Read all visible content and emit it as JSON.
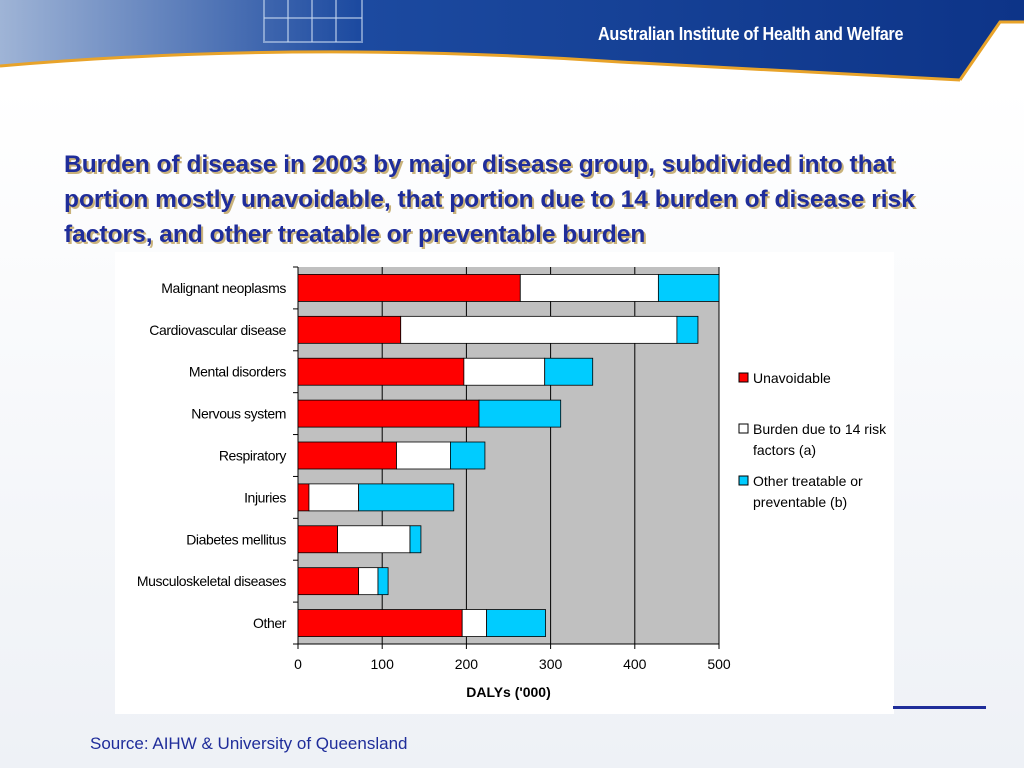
{
  "header": {
    "organization": "Australian Institute of Health and Welfare"
  },
  "slide": {
    "title": "Burden of disease in 2003 by major disease group, subdivided into that portion mostly unavoidable, that portion due to 14 burden of disease risk factors, and other treatable or preventable burden",
    "source": "Source: AIHW & University of Queensland"
  },
  "colors": {
    "unavoidable": "#ff0000",
    "risk_factors": "#ffffff",
    "other": "#00ccff",
    "plot_bg": "#c0c0c0",
    "title": "#1f2d9a"
  },
  "chart_data": {
    "type": "bar",
    "orientation": "horizontal",
    "stacked": true,
    "categories": [
      "Malignant neoplasms",
      "Cardiovascular disease",
      "Mental disorders",
      "Nervous system",
      "Respiratory",
      "Injuries",
      "Diabetes mellitus",
      "Musculoskeletal diseases",
      "Other"
    ],
    "series": [
      {
        "name": "Unavoidable",
        "values": [
          264,
          122,
          197,
          215,
          117,
          13,
          47,
          72,
          195
        ]
      },
      {
        "name": "Burden due to 14 risk factors (a)",
        "values": [
          164,
          328,
          96,
          0,
          64,
          59,
          86,
          23,
          29
        ]
      },
      {
        "name": "Other treatable or preventable (b)",
        "values": [
          72,
          25,
          57,
          97,
          41,
          113,
          13,
          12,
          70
        ]
      }
    ],
    "xlabel": "DALYs ('000)",
    "xlim": [
      0,
      500
    ],
    "xticks": [
      "0",
      "100",
      "200",
      "300",
      "400",
      "500"
    ],
    "grid": true,
    "legend_position": "right"
  }
}
